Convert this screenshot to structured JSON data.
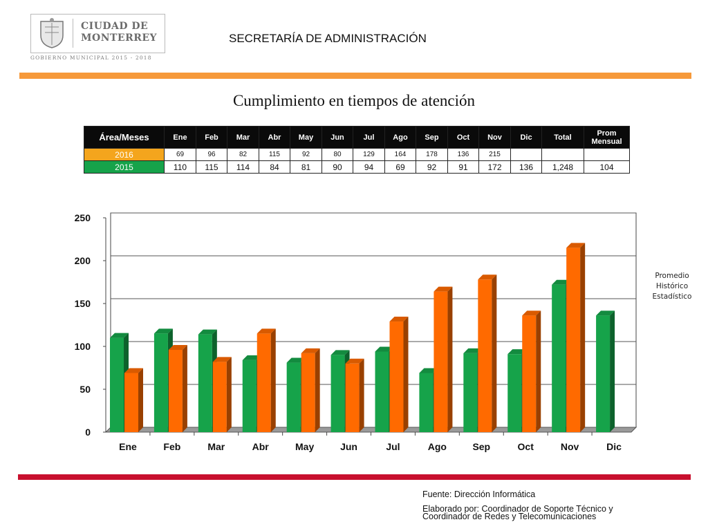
{
  "header": {
    "logo_line1": "CIUDAD DE",
    "logo_line2": "MONTERREY",
    "logo_subtitle": "GOBIERNO MUNICIPAL 2015 - 2018",
    "department": "SECRETARÍA DE ADMINISTRACIÓN"
  },
  "title": "Cumplimiento en tiempos de atención",
  "table": {
    "corner": "Área/Meses",
    "columns": [
      "Ene",
      "Feb",
      "Mar",
      "Abr",
      "May",
      "Jun",
      "Jul",
      "Ago",
      "Sep",
      "Oct",
      "Nov",
      "Dic",
      "Total"
    ],
    "prom_line1": "Prom",
    "prom_line2": "Mensual",
    "rows": [
      {
        "label": "2016",
        "cells": [
          "69",
          "96",
          "82",
          "115",
          "92",
          "80",
          "129",
          "164",
          "178",
          "136",
          "215",
          "",
          "",
          ""
        ]
      },
      {
        "label": "2015",
        "cells": [
          "110",
          "115",
          "114",
          "84",
          "81",
          "90",
          "94",
          "69",
          "92",
          "91",
          "172",
          "136",
          "1,248",
          "104"
        ]
      }
    ]
  },
  "chart_data": {
    "type": "bar",
    "categories": [
      "Ene",
      "Feb",
      "Mar",
      "Abr",
      "May",
      "Jun",
      "Jul",
      "Ago",
      "Sep",
      "Oct",
      "Nov",
      "Dic"
    ],
    "series": [
      {
        "name": "2015",
        "values": [
          110,
          115,
          114,
          84,
          81,
          90,
          94,
          69,
          92,
          91,
          172,
          136
        ]
      },
      {
        "name": "2016",
        "values": [
          69,
          96,
          82,
          115,
          92,
          80,
          129,
          164,
          178,
          136,
          215,
          null
        ]
      }
    ],
    "ylim": [
      0,
      250
    ],
    "yticks": [
      "0",
      "50",
      "100",
      "150",
      "200",
      "250"
    ],
    "grid": true,
    "colors": {
      "2015": "#16a34a",
      "2016": "#ff6a00"
    }
  },
  "side_note": [
    "Promedio",
    "Histórico",
    "Estadístico"
  ],
  "footer": {
    "source": "Fuente: Dirección  Informática",
    "elaborated_1": "Elaborado por: Coordinador de Soporte Técnico y",
    "elaborated_2": "Coordinador de Redes y Telecomunicaciones"
  },
  "colors": {
    "orange_rule": "#f6993a",
    "red_rule": "#c8102e",
    "row_2016": "#f4a51d",
    "row_2015": "#16a34a"
  }
}
